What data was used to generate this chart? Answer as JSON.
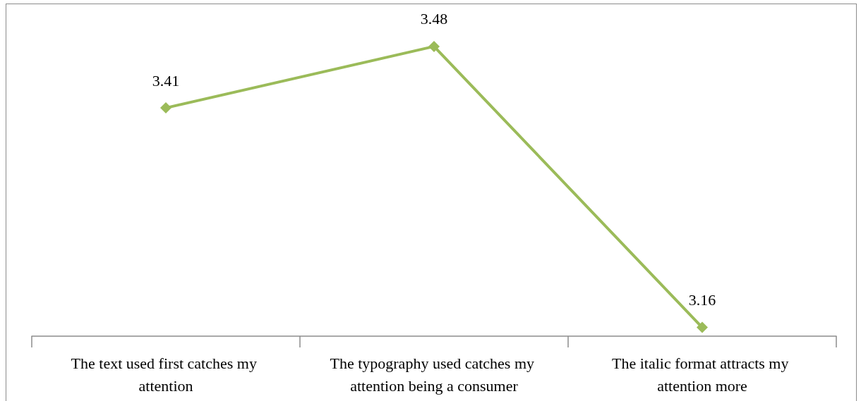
{
  "chart_data": {
    "type": "line",
    "categories": [
      "The text used first catches my attention",
      "The typography used catches my attention being a consumer",
      "The italic format attracts my attention more"
    ],
    "values": [
      3.41,
      3.48,
      3.16
    ],
    "color": "#9bbb59",
    "data_labels": true,
    "marker": "diamond",
    "line_style": "solid"
  }
}
